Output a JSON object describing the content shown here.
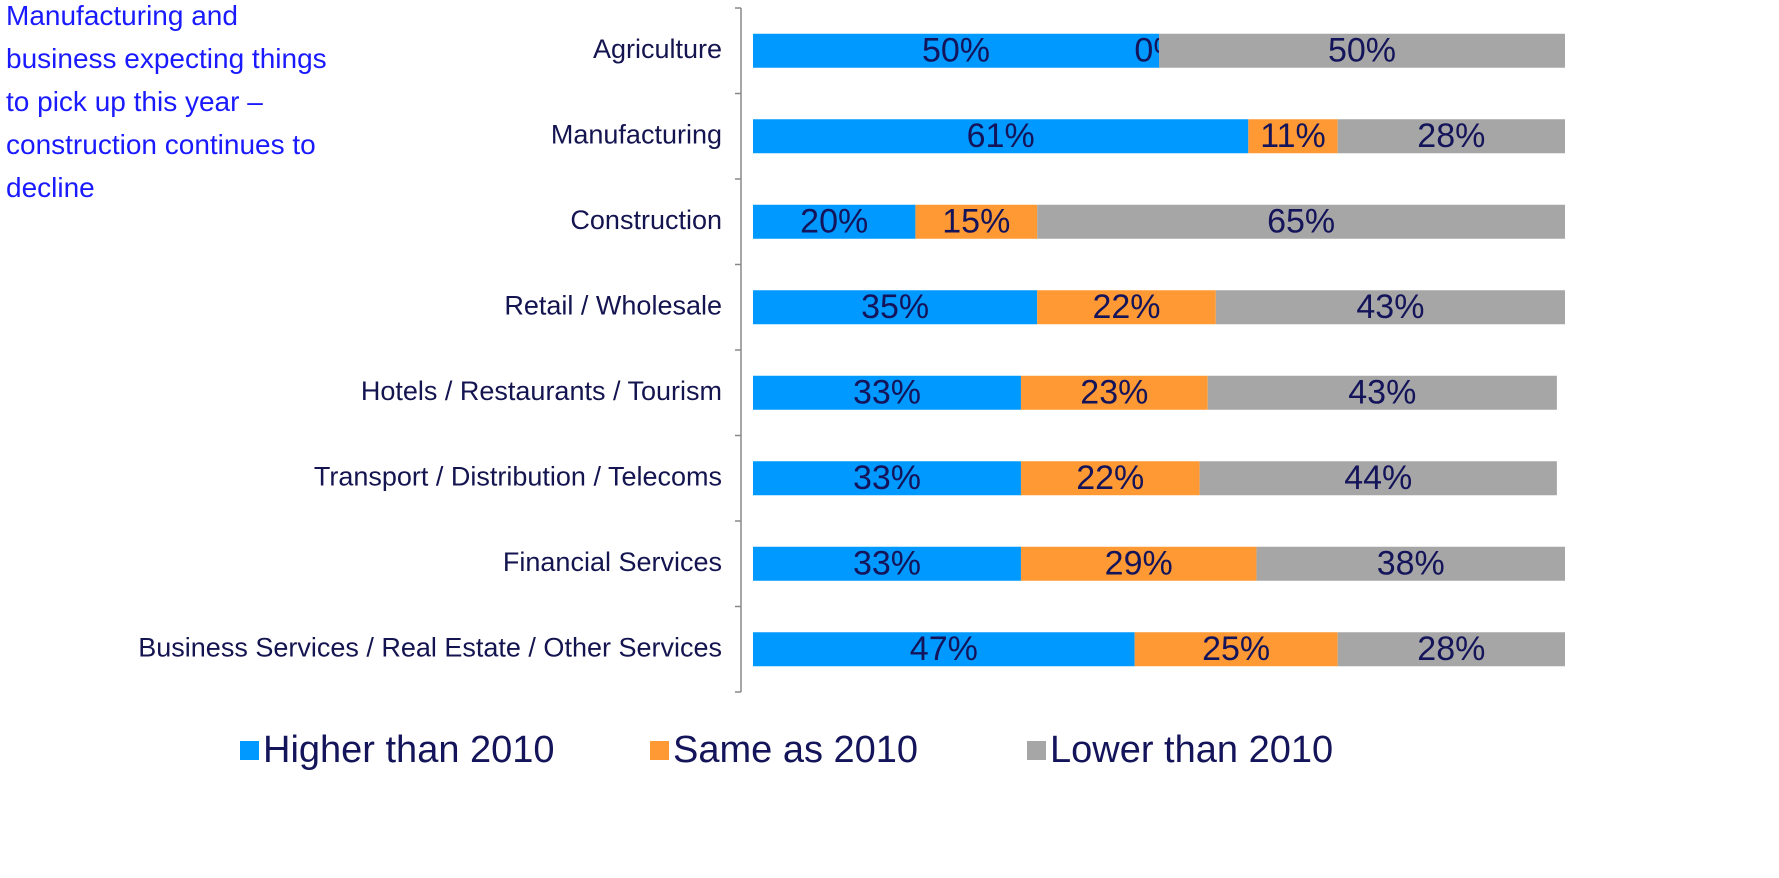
{
  "chart_data": {
    "type": "stacked_barh",
    "annotation": "Manufacturing and business expecting things to pick up this year – construction continues to decline",
    "categories": [
      "Agriculture",
      "Manufacturing",
      "Construction",
      "Retail / Wholesale",
      "Hotels / Restaurants / Tourism",
      "Transport / Distribution / Telecoms",
      "Financial Services",
      "Business Services / Real Estate / Other Services"
    ],
    "series": [
      {
        "name": "Higher than 2010",
        "color": "#0099ff",
        "values": [
          50,
          61,
          20,
          35,
          33,
          33,
          33,
          47
        ],
        "value_labels": [
          "50%",
          "61%",
          "20%",
          "35%",
          "33%",
          "33%",
          "33%",
          "47%"
        ]
      },
      {
        "name": "Same as 2010",
        "color": "#ff9933",
        "values": [
          0,
          11,
          15,
          22,
          23,
          22,
          29,
          25
        ],
        "value_labels": [
          "0%",
          "11%",
          "15%",
          "22%",
          "23%",
          "22%",
          "29%",
          "25%"
        ]
      },
      {
        "name": "Lower than 2010",
        "color": "#a6a6a6",
        "values": [
          50,
          28,
          65,
          43,
          43,
          44,
          38,
          28
        ],
        "value_labels": [
          "50%",
          "28%",
          "65%",
          "43%",
          "43%",
          "44%",
          "38%",
          "28%"
        ]
      }
    ],
    "xlim": [
      0,
      100
    ],
    "legend": "bottom"
  }
}
